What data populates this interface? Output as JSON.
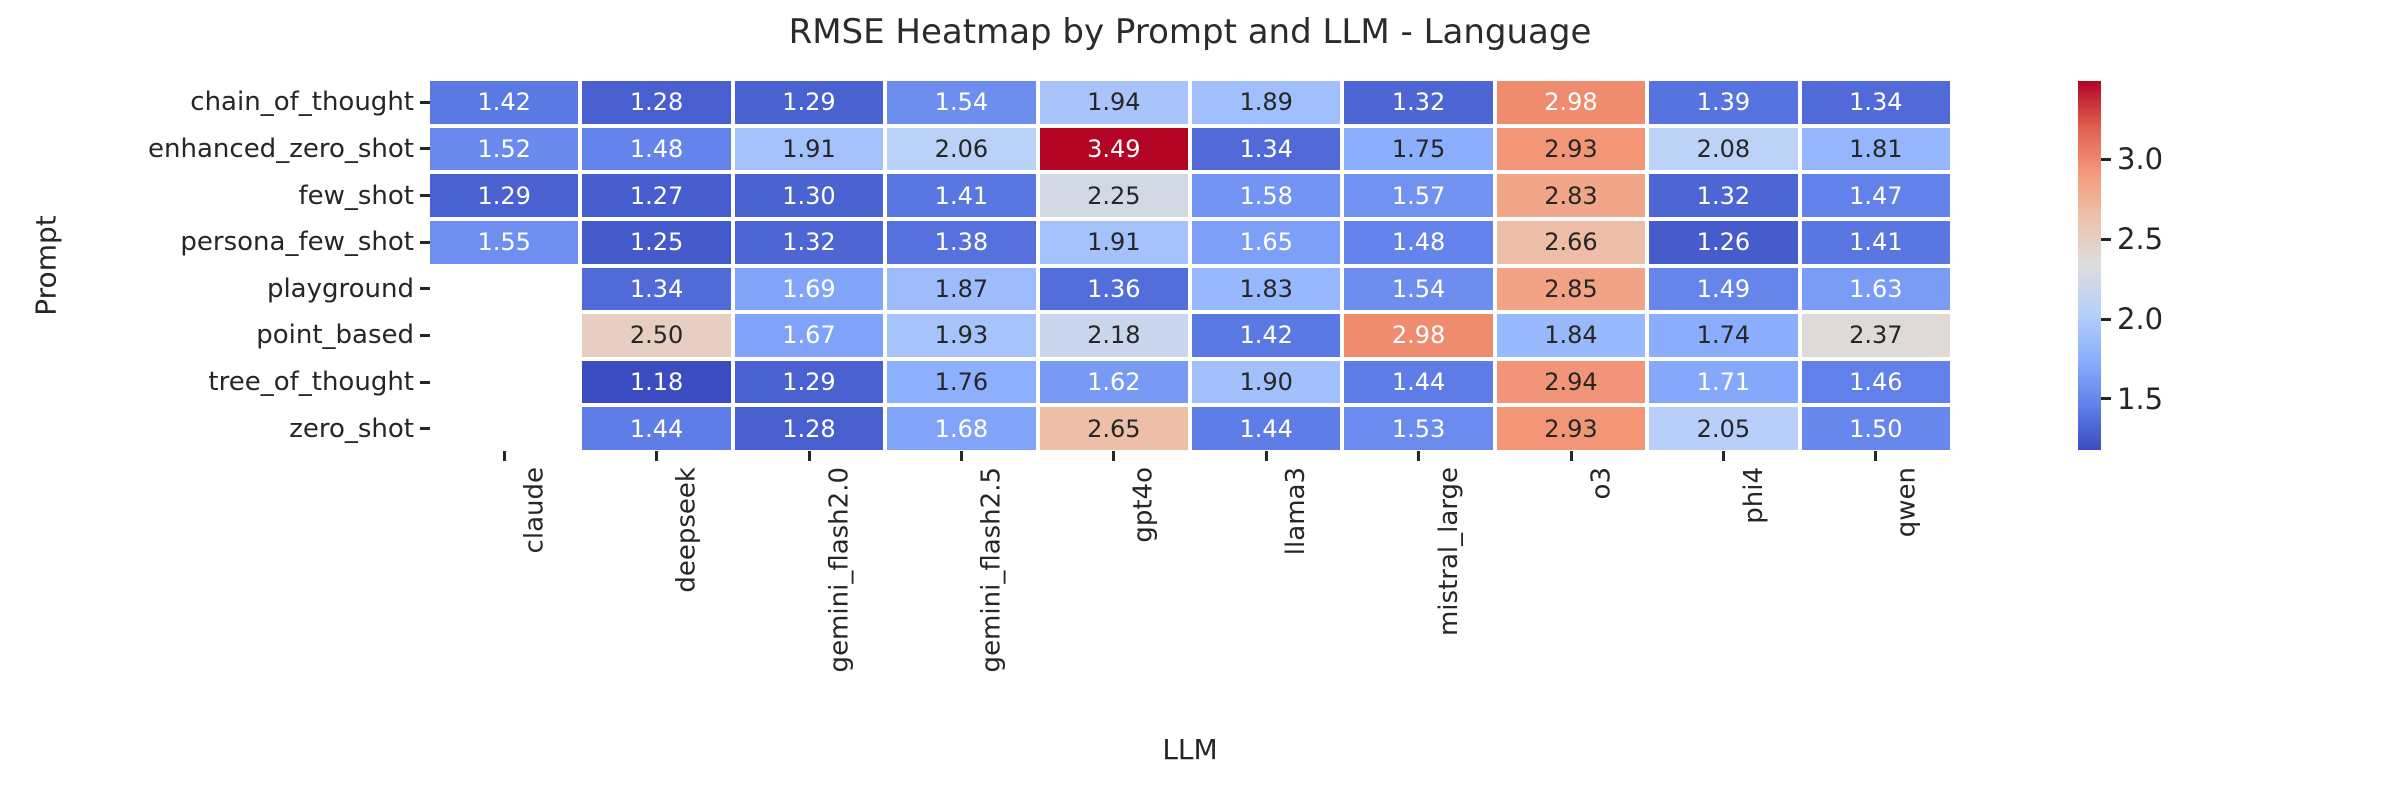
{
  "title": "RMSE Heatmap by Prompt and LLM - Language",
  "chart_data": {
    "type": "heatmap",
    "title": "RMSE Heatmap by Prompt and LLM - Language",
    "xlabel": "LLM",
    "ylabel": "Prompt",
    "columns": [
      "claude",
      "deepseek",
      "gemini_flash2.0",
      "gemini_flash2.5",
      "gpt4o",
      "llama3",
      "mistral_large",
      "o3",
      "phi4",
      "qwen"
    ],
    "rows": [
      "chain_of_thought",
      "enhanced_zero_shot",
      "few_shot",
      "persona_few_shot",
      "playground",
      "point_based",
      "tree_of_thought",
      "zero_shot"
    ],
    "values": [
      [
        1.42,
        1.28,
        1.29,
        1.54,
        1.94,
        1.89,
        1.32,
        2.98,
        1.39,
        1.34
      ],
      [
        1.52,
        1.48,
        1.91,
        2.06,
        3.49,
        1.34,
        1.75,
        2.93,
        2.08,
        1.81
      ],
      [
        1.29,
        1.27,
        1.3,
        1.41,
        2.25,
        1.58,
        1.57,
        2.83,
        1.32,
        1.47
      ],
      [
        1.55,
        1.25,
        1.32,
        1.38,
        1.91,
        1.65,
        1.48,
        2.66,
        1.26,
        1.41
      ],
      [
        null,
        1.34,
        1.69,
        1.87,
        1.36,
        1.83,
        1.54,
        2.85,
        1.49,
        1.63
      ],
      [
        null,
        2.5,
        1.67,
        1.93,
        2.18,
        1.42,
        2.98,
        1.84,
        1.74,
        2.37
      ],
      [
        null,
        1.18,
        1.29,
        1.76,
        1.62,
        1.9,
        1.44,
        2.94,
        1.71,
        1.46
      ],
      [
        null,
        1.44,
        1.28,
        1.68,
        2.65,
        1.44,
        1.53,
        2.93,
        2.05,
        1.5
      ]
    ],
    "annotation_decimals": 2,
    "colormap": "coolwarm",
    "vmin": 1.18,
    "vmax": 3.49,
    "colorbar_ticks": [
      3.0,
      2.5,
      2.0,
      1.5
    ],
    "colorbar_tick_labels": [
      "3.0",
      "2.5",
      "2.0",
      "1.5"
    ],
    "legend_position": "right",
    "grid": false
  },
  "colors": {
    "background": "#ffffff",
    "text": "#262626",
    "annotation_dark": "#262626",
    "annotation_light": "#ffffff",
    "cmap_low": "#3B4CC0",
    "cmap_mid": "#DDDDDD",
    "cmap_high": "#B40426"
  }
}
